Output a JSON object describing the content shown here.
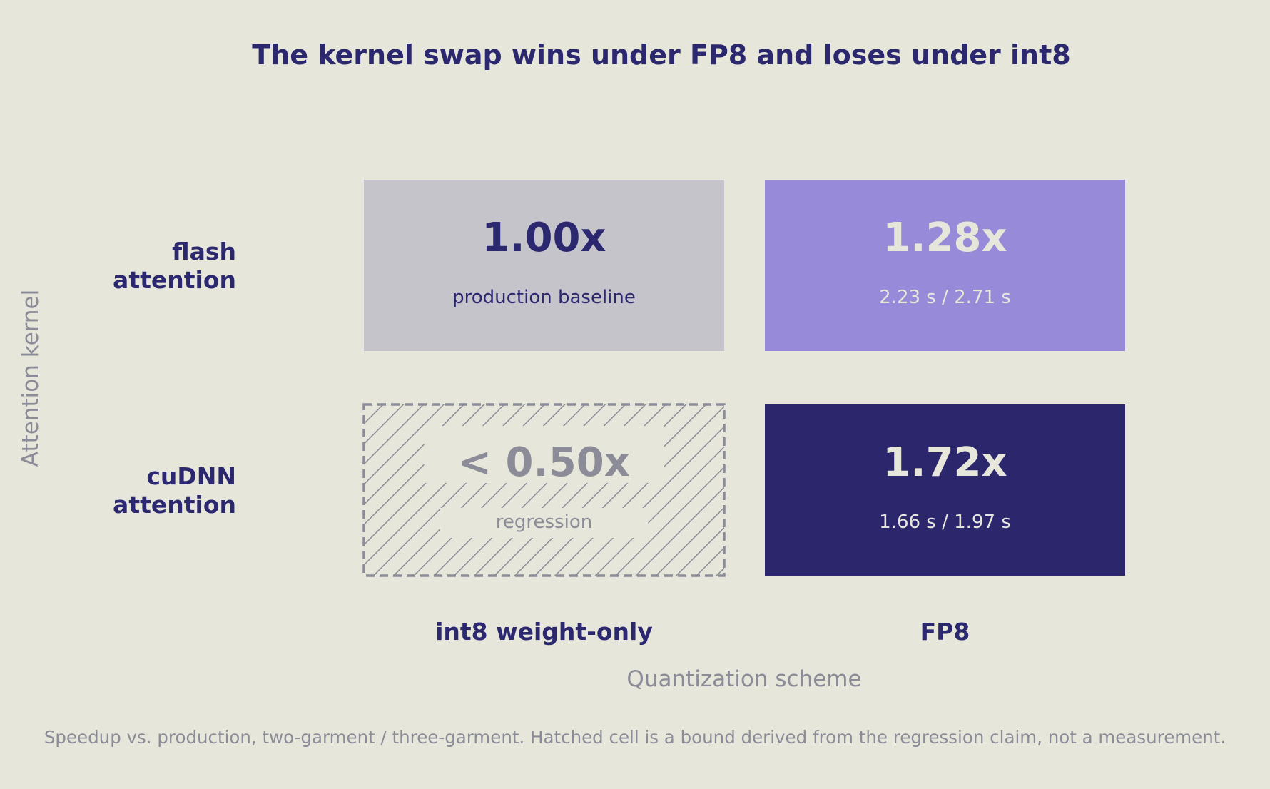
{
  "chart_data": {
    "type": "heatmap",
    "title": "The kernel swap wins under FP8 and loses under int8",
    "xlabel": "Quantization scheme",
    "ylabel": "Attention kernel",
    "x_categories": [
      "int8 weight-only",
      "FP8"
    ],
    "y_categories": [
      {
        "lines": [
          "flash",
          "attention"
        ]
      },
      {
        "lines": [
          "cuDNN",
          "attention"
        ]
      }
    ],
    "cells": [
      {
        "row": 0,
        "col": 0,
        "value": 1.0,
        "label": "1.00x",
        "sub": "production baseline",
        "style": "baseline"
      },
      {
        "row": 0,
        "col": 1,
        "value": 1.28,
        "label": "1.28x",
        "sub": "2.23 s / 2.71 s",
        "style": "moderate"
      },
      {
        "row": 1,
        "col": 0,
        "value": 0.5,
        "label": "< 0.50x",
        "sub": "regression",
        "style": "hatched"
      },
      {
        "row": 1,
        "col": 1,
        "value": 1.72,
        "label": "1.72x",
        "sub": "1.66 s / 1.97 s",
        "style": "strong"
      }
    ],
    "caption": "Speedup vs. production, two-garment / three-garment. Hatched cell is a bound derived from the regression claim, not a measurement.",
    "colors": {
      "background": "#e6e6da",
      "baseline": "#c5c4cb",
      "moderate": "#978bd9",
      "strong": "#2c276d",
      "hatch": "#8c8c99",
      "ink": "#2c2870",
      "muted": "#8c8c99",
      "light_text": "#e6e6da"
    }
  }
}
